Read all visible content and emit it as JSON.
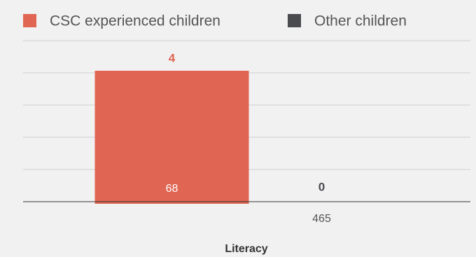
{
  "chart_data": {
    "type": "bar",
    "x_label": "Literacy",
    "categories": [
      "Literacy"
    ],
    "series": [
      {
        "name": "CSC experienced children",
        "color": "#e06552",
        "values": [
          4
        ],
        "n": [
          68
        ]
      },
      {
        "name": "Other children",
        "color": "#4a4b4f",
        "values": [
          0
        ],
        "n": [
          465
        ]
      }
    ],
    "ylim": [
      0,
      5
    ],
    "yticks": [
      0,
      1,
      2,
      3,
      4,
      5
    ],
    "grid": true
  }
}
